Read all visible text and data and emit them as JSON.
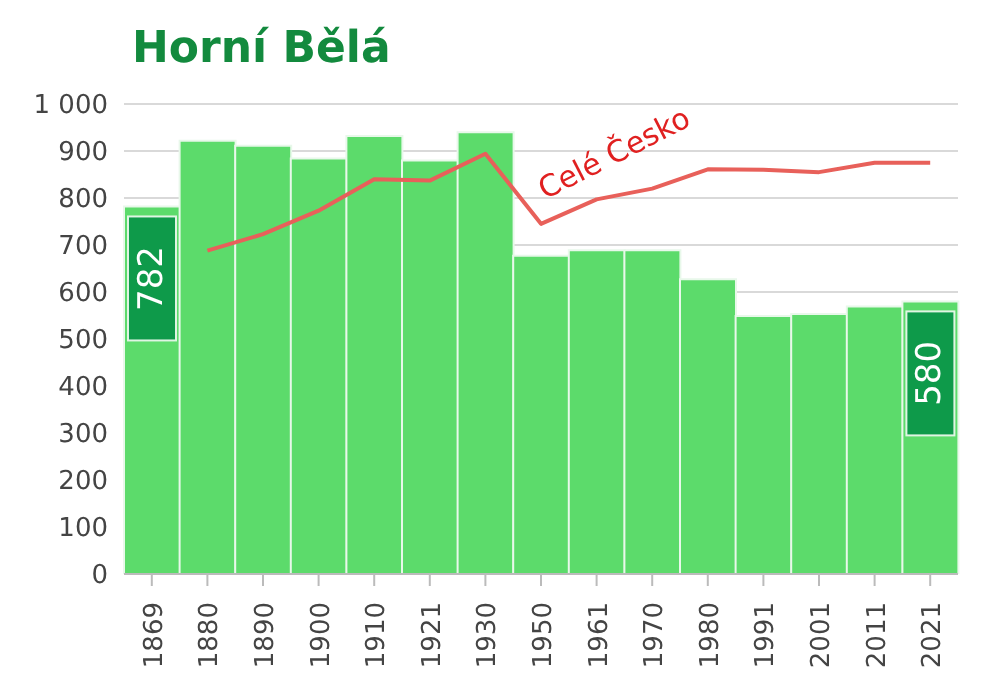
{
  "chart_data": {
    "type": "bar",
    "title": "Horní Bělá",
    "categories": [
      "1869",
      "1880",
      "1890",
      "1900",
      "1910",
      "1921",
      "1930",
      "1950",
      "1961",
      "1970",
      "1980",
      "1991",
      "2001",
      "2011",
      "2021"
    ],
    "series": [
      {
        "color": "#5cdb6b",
        "values": [
          782,
          922,
          911,
          884,
          932,
          880,
          940,
          677,
          689,
          689,
          627,
          549,
          553,
          569,
          580
        ],
        "value_labels": [
          "782",
          null,
          null,
          null,
          null,
          null,
          null,
          null,
          null,
          null,
          null,
          null,
          null,
          null,
          "580"
        ]
      },
      {
        "type": "line",
        "name": "Celé Česko",
        "color": "#e8605a",
        "values": [
          null,
          688,
          723,
          773,
          840,
          837,
          894,
          745,
          797,
          820,
          861,
          860,
          855,
          875,
          875
        ]
      }
    ],
    "ylim": [
      0,
      1000
    ],
    "yticks": [
      0,
      100,
      200,
      300,
      400,
      500,
      600,
      700,
      800,
      900,
      {
        "value": 1000,
        "label": "1 000"
      }
    ],
    "grid": "y"
  }
}
